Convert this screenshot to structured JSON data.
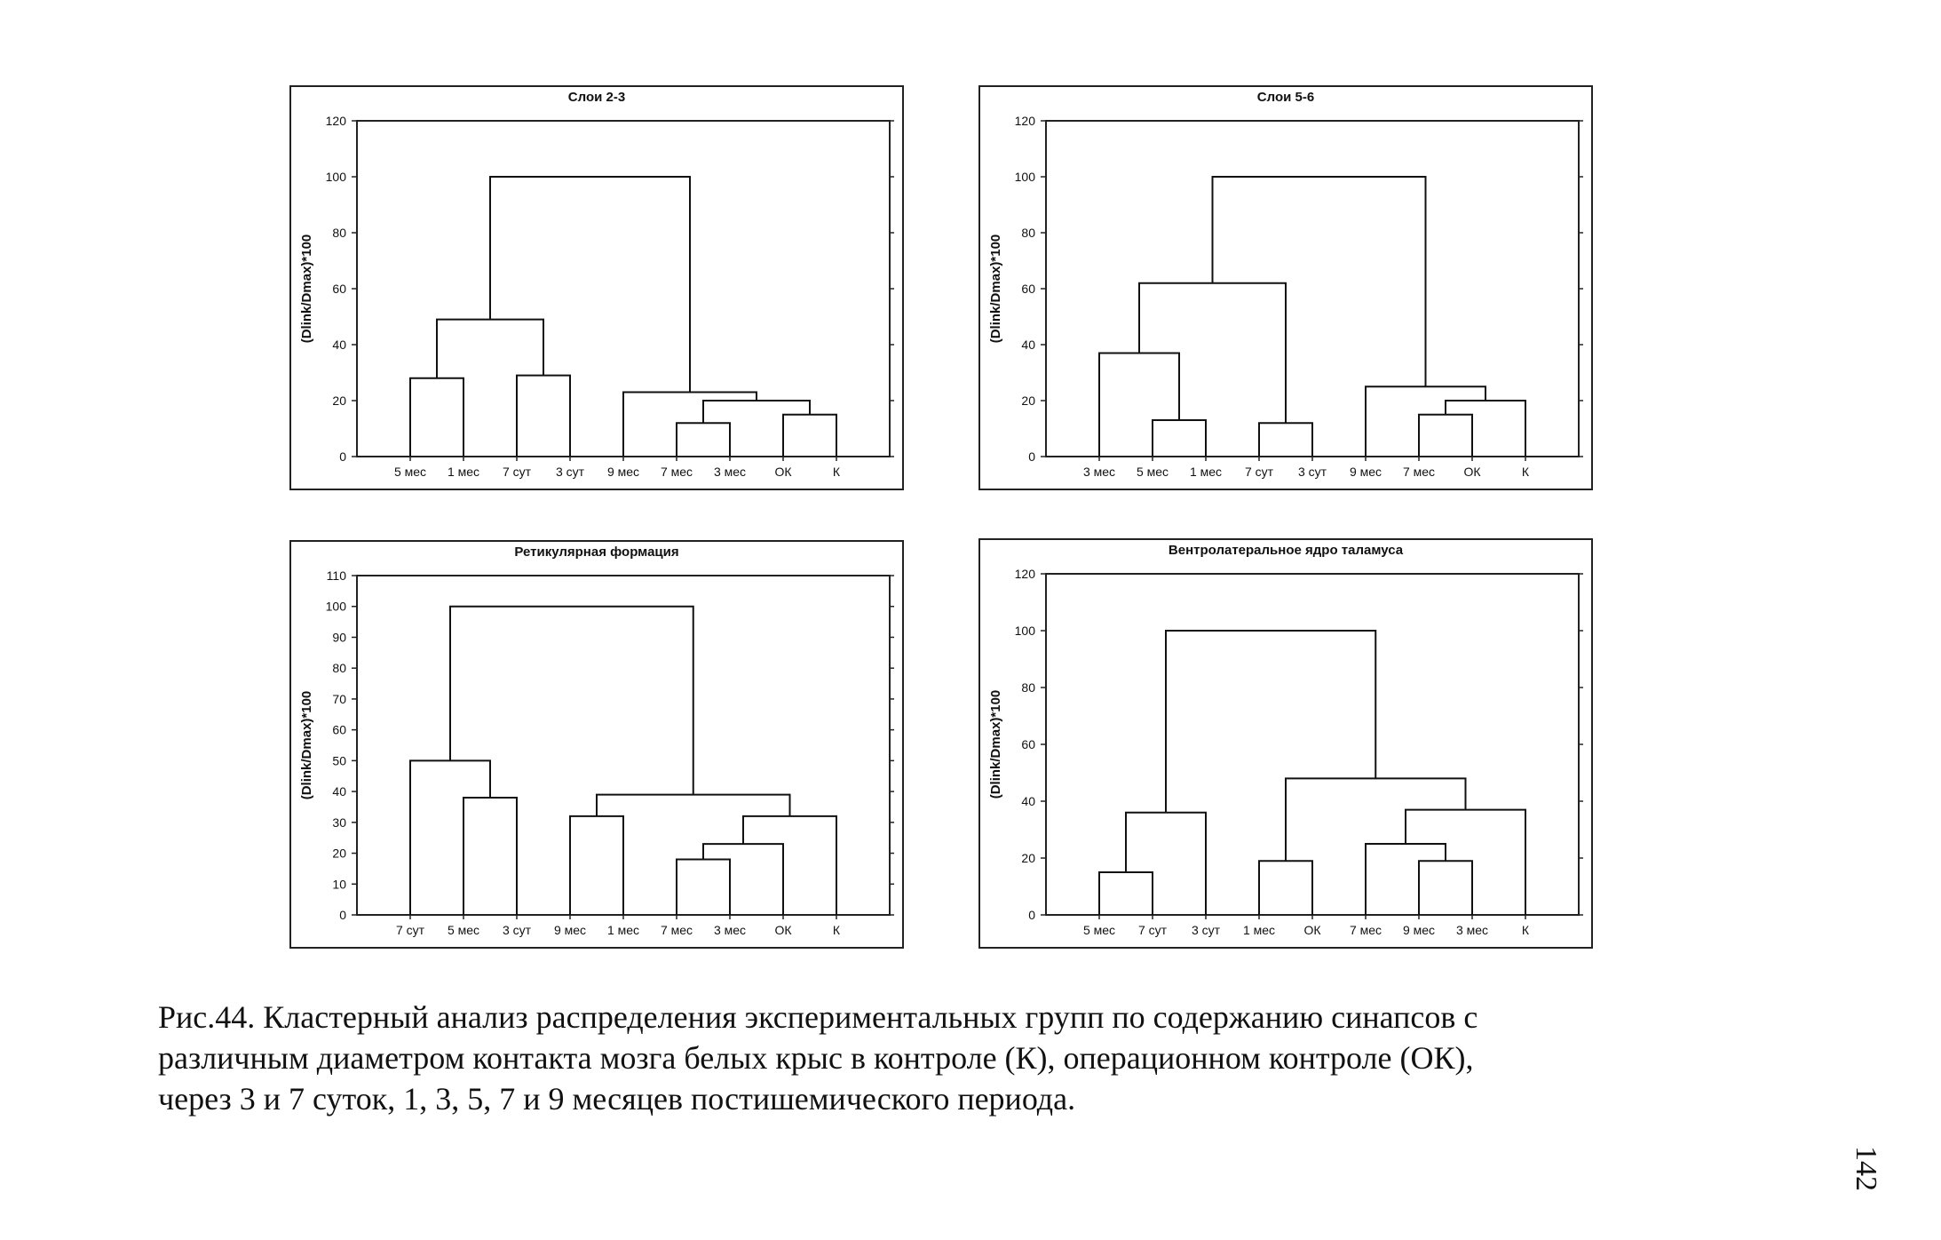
{
  "figure": {
    "caption_lines": [
      "Рис.44. Кластерный анализ распределения экспериментальных групп по содержанию синапсов с",
      "различным диаметром контакта мозга белых крыс в контроле (К), операционном контроле (ОК),",
      "через 3 и 7 суток, 1, 3, 5, 7 и 9 месяцев постишемического периода."
    ],
    "page_number": "142"
  },
  "chart_data": [
    {
      "type": "dendrogram",
      "title": "Слои 2-3",
      "ylabel": "(Dlink/Dmax)*100",
      "ylim": [
        0,
        120
      ],
      "yticks": [
        0,
        20,
        40,
        60,
        80,
        100,
        120
      ],
      "categories": [
        "5 мес",
        "1 мес",
        "7 сут",
        "3 сут",
        "9 мес",
        "7 мес",
        "3 мес",
        "ОК",
        "К"
      ],
      "merges": [
        {
          "left": 5,
          "right": 6,
          "height": 12
        },
        {
          "left": 7,
          "right": 8,
          "height": 15
        },
        {
          "left": 0,
          "right": 1,
          "height": 28
        },
        {
          "left": 2,
          "right": 3,
          "height": 29
        },
        {
          "left": "c1",
          "right": "c2",
          "height": 20
        },
        {
          "left": 4,
          "right": "c5",
          "height": 23
        },
        {
          "left": "c3",
          "right": "c4",
          "height": 49
        },
        {
          "left": "c7",
          "right": "c6",
          "height": 100
        }
      ]
    },
    {
      "type": "dendrogram",
      "title": "Слои 5-6",
      "ylabel": "(Dlink/Dmax)*100",
      "ylim": [
        0,
        120
      ],
      "yticks": [
        0,
        20,
        40,
        60,
        80,
        100,
        120
      ],
      "categories": [
        "3 мес",
        "5 мес",
        "1 мес",
        "7 сут",
        "3 сут",
        "9 мес",
        "7 мес",
        "ОК",
        "К"
      ],
      "merges": [
        {
          "left": 1,
          "right": 2,
          "height": 13
        },
        {
          "left": 3,
          "right": 4,
          "height": 12
        },
        {
          "left": 6,
          "right": 7,
          "height": 15
        },
        {
          "left": 0,
          "right": "c1",
          "height": 37
        },
        {
          "left": "c3",
          "right": 8,
          "height": 20
        },
        {
          "left": 5,
          "right": "c5",
          "height": 25
        },
        {
          "left": "c4",
          "right": "c2",
          "height": 62
        },
        {
          "left": "c7",
          "right": "c6",
          "height": 100
        }
      ]
    },
    {
      "type": "dendrogram",
      "title": "Ретикулярная формация",
      "ylabel": "(Dlink/Dmax)*100",
      "ylim": [
        0,
        110
      ],
      "yticks": [
        0,
        10,
        20,
        30,
        40,
        50,
        60,
        70,
        80,
        90,
        100,
        110
      ],
      "categories": [
        "7 сут",
        "5 мес",
        "3 сут",
        "9 мес",
        "1 мес",
        "7 мес",
        "3 мес",
        "ОК",
        "К"
      ],
      "merges": [
        {
          "left": 5,
          "right": 6,
          "height": 18
        },
        {
          "left": 1,
          "right": 2,
          "height": 38
        },
        {
          "left": 3,
          "right": 4,
          "height": 32
        },
        {
          "left": "c1",
          "right": 7,
          "height": 23
        },
        {
          "left": "c4",
          "right": 8,
          "height": 32
        },
        {
          "left": "c3",
          "right": "c5",
          "height": 39
        },
        {
          "left": 0,
          "right": "c2",
          "height": 50
        },
        {
          "left": "c7",
          "right": "c6",
          "height": 100
        }
      ]
    },
    {
      "type": "dendrogram",
      "title": "Вентролатеральное ядро таламуса",
      "ylabel": "(Dlink/Dmax)*100",
      "ylim": [
        0,
        120
      ],
      "yticks": [
        0,
        20,
        40,
        60,
        80,
        100,
        120
      ],
      "categories": [
        "5 мес",
        "7 сут",
        "3 сут",
        "1 мес",
        "ОК",
        "7 мес",
        "9 мес",
        "3 мес",
        "К"
      ],
      "merges": [
        {
          "left": 0,
          "right": 1,
          "height": 15
        },
        {
          "left": 3,
          "right": 4,
          "height": 19
        },
        {
          "left": 6,
          "right": 7,
          "height": 19
        },
        {
          "left": 5,
          "right": "c3",
          "height": 25
        },
        {
          "left": "c1",
          "right": 2,
          "height": 36
        },
        {
          "left": "c4",
          "right": 8,
          "height": 37
        },
        {
          "left": "c2",
          "right": "c6",
          "height": 48
        },
        {
          "left": "c5",
          "right": "c7",
          "height": 100
        }
      ]
    }
  ]
}
